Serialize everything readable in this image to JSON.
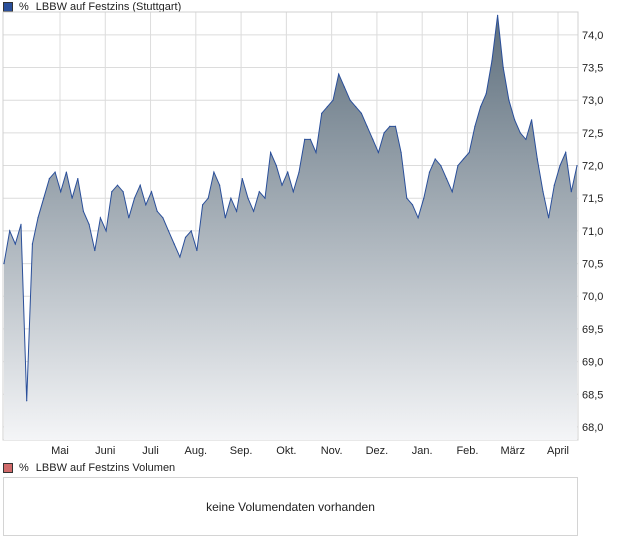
{
  "legend": {
    "price": {
      "unit": "%",
      "label": "LBBW auf Festzins (Stuttgart)"
    },
    "volume": {
      "unit": "%",
      "label": "LBBW auf Festzins Volumen"
    }
  },
  "volume_panel": {
    "message": "keine Volumendaten vorhanden"
  },
  "colors": {
    "line": "#2a4f9a",
    "fill_top": "#5e6f7d",
    "fill_bottom": "#f4f5f7",
    "grid": "#dcdcdc"
  },
  "chart_data": {
    "type": "area",
    "title": "",
    "series": [
      {
        "name": "LBBW auf Festzins (Stuttgart)",
        "x_start": "Apr",
        "x_end": "April",
        "values": [
          70.5,
          71.0,
          70.8,
          71.1,
          68.4,
          70.8,
          71.2,
          71.5,
          71.8,
          71.9,
          71.6,
          71.9,
          71.5,
          71.8,
          71.3,
          71.1,
          70.7,
          71.2,
          71.0,
          71.6,
          71.7,
          71.6,
          71.2,
          71.5,
          71.7,
          71.4,
          71.6,
          71.3,
          71.2,
          71.0,
          70.8,
          70.6,
          70.9,
          71.0,
          70.7,
          71.4,
          71.5,
          71.9,
          71.7,
          71.2,
          71.5,
          71.3,
          71.8,
          71.5,
          71.3,
          71.6,
          71.5,
          72.2,
          72.0,
          71.7,
          71.9,
          71.6,
          71.9,
          72.4,
          72.4,
          72.2,
          72.8,
          72.9,
          73.0,
          73.4,
          73.2,
          73.0,
          72.9,
          72.8,
          72.6,
          72.4,
          72.2,
          72.5,
          72.6,
          72.6,
          72.2,
          71.5,
          71.4,
          71.2,
          71.5,
          71.9,
          72.1,
          72.0,
          71.8,
          71.6,
          72.0,
          72.1,
          72.2,
          72.6,
          72.9,
          73.1,
          73.6,
          74.3,
          73.5,
          73.0,
          72.7,
          72.5,
          72.4,
          72.7,
          72.1,
          71.6,
          71.2,
          71.7,
          72.0,
          72.2,
          71.6,
          72.0
        ]
      }
    ],
    "x_ticks": [
      "Mai",
      "Juni",
      "Juli",
      "Aug.",
      "Sep.",
      "Okt.",
      "Nov.",
      "Dez.",
      "Jan.",
      "Feb.",
      "März",
      "April"
    ],
    "y_ticks": [
      "68,0",
      "68,5",
      "69,0",
      "69,5",
      "70,0",
      "70,5",
      "71,0",
      "71,5",
      "72,0",
      "72,5",
      "73,0",
      "73,5",
      "74,0"
    ],
    "y_tick_values": [
      68.0,
      68.5,
      69.0,
      69.5,
      70.0,
      70.5,
      71.0,
      71.5,
      72.0,
      72.5,
      73.0,
      73.5,
      74.0
    ],
    "ylim": [
      67.8,
      74.35
    ],
    "y_axis_position": "right",
    "grid": true,
    "legend": "top-left"
  }
}
